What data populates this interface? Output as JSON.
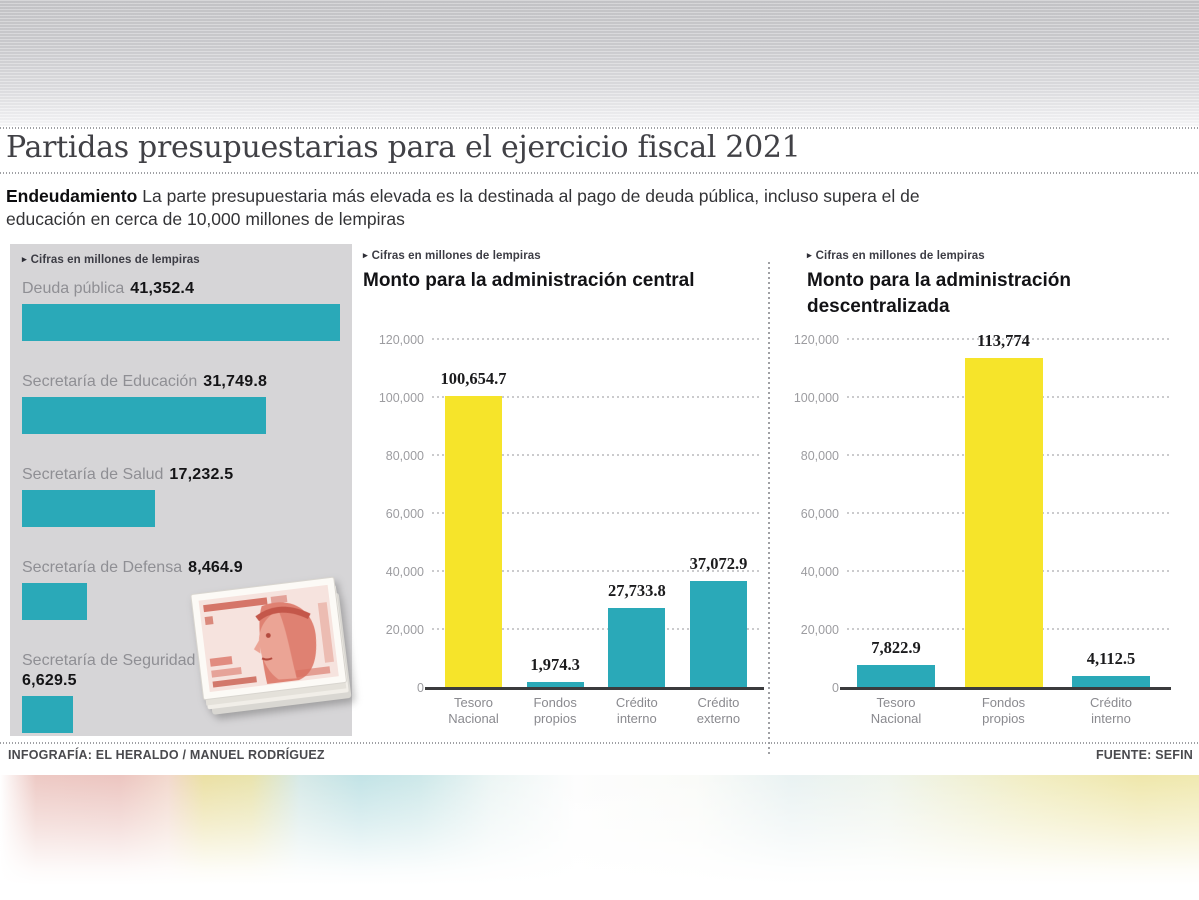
{
  "header": {
    "title": "Partidas presupuestarias para el ejercicio fiscal 2021",
    "lede_label": "Endeudamiento",
    "lede_line1": "La parte presupuestaria más elevada es la destinada al pago de deuda pública, incluso supera el de",
    "lede_line2": "educación en cerca de 10,000 millones de lempiras"
  },
  "footer": {
    "credit": "INFOGRAFÍA: EL HERALDO / MANUEL RODRÍGUEZ",
    "source": "FUENTE: SEFIN"
  },
  "icons": {
    "note_bullet": "▸"
  },
  "colors": {
    "teal": "#2aa9b8",
    "yellow": "#f6e42a",
    "panel_gray": "#d6d5d7"
  },
  "chart_data": [
    {
      "type": "bar",
      "orientation": "horizontal",
      "note": "Cifras en millones de lempiras",
      "xlim": [
        0,
        41352.4
      ],
      "grid": false,
      "bars": [
        {
          "label": "Deuda pública",
          "value": 41352.4,
          "display": "41,352.4"
        },
        {
          "label": "Secretaría de Educación",
          "value": 31749.8,
          "display": "31,749.8"
        },
        {
          "label": "Secretaría de Salud",
          "value": 17232.5,
          "display": "17,232.5"
        },
        {
          "label": "Secretaría de Defensa",
          "value": 8464.9,
          "display": "8,464.9"
        },
        {
          "label": "Secretaría de Seguridad",
          "value": 6629.5,
          "display": "6,629.5",
          "wrap": true
        }
      ]
    },
    {
      "type": "bar",
      "orientation": "vertical",
      "note": "Cifras en millones de lempiras",
      "title": "Monto para la administración central",
      "ylim": [
        0,
        120000
      ],
      "grid": true,
      "yticks": [
        {
          "value": 120000,
          "label": "120,000"
        },
        {
          "value": 100000,
          "label": "100,000"
        },
        {
          "value": 80000,
          "label": "80,000"
        },
        {
          "value": 60000,
          "label": "60,000"
        },
        {
          "value": 40000,
          "label": "40,000"
        },
        {
          "value": 20000,
          "label": "20,000"
        },
        {
          "value": 0,
          "label": "0"
        }
      ],
      "bars": [
        {
          "label": "Tesoro Nacional",
          "label_lines": [
            "Tesoro",
            "Nacional"
          ],
          "value": 100654.7,
          "display": "100,654.7",
          "color": "yellow"
        },
        {
          "label": "Fondos propios",
          "label_lines": [
            "Fondos",
            "propios"
          ],
          "value": 1974.3,
          "display": "1,974.3",
          "color": "teal"
        },
        {
          "label": "Crédito interno",
          "label_lines": [
            "Crédito",
            "interno"
          ],
          "value": 27733.8,
          "display": "27,733.8",
          "color": "teal"
        },
        {
          "label": "Crédito externo",
          "label_lines": [
            "Crédito",
            "externo"
          ],
          "value": 37072.9,
          "display": "37,072.9",
          "color": "teal"
        }
      ]
    },
    {
      "type": "bar",
      "orientation": "vertical",
      "note": "Cifras en millones de lempiras",
      "title": "Monto para la administración descentralizada",
      "ylim": [
        0,
        120000
      ],
      "grid": true,
      "yticks": [
        {
          "value": 120000,
          "label": "120,000"
        },
        {
          "value": 100000,
          "label": "100,000"
        },
        {
          "value": 80000,
          "label": "80,000"
        },
        {
          "value": 60000,
          "label": "60,000"
        },
        {
          "value": 40000,
          "label": "40,000"
        },
        {
          "value": 20000,
          "label": "20,000"
        },
        {
          "value": 0,
          "label": "0"
        }
      ],
      "bars": [
        {
          "label": "Tesoro Nacional",
          "label_lines": [
            "Tesoro",
            "Nacional"
          ],
          "value": 7822.9,
          "display": "7,822.9",
          "color": "teal"
        },
        {
          "label": "Fondos propios",
          "label_lines": [
            "Fondos",
            "propios"
          ],
          "value": 113774,
          "display": "113,774",
          "color": "yellow"
        },
        {
          "label": "Crédito interno",
          "label_lines": [
            "Crédito",
            "interno"
          ],
          "value": 4112.5,
          "display": "4,112.5",
          "color": "teal"
        }
      ]
    }
  ]
}
